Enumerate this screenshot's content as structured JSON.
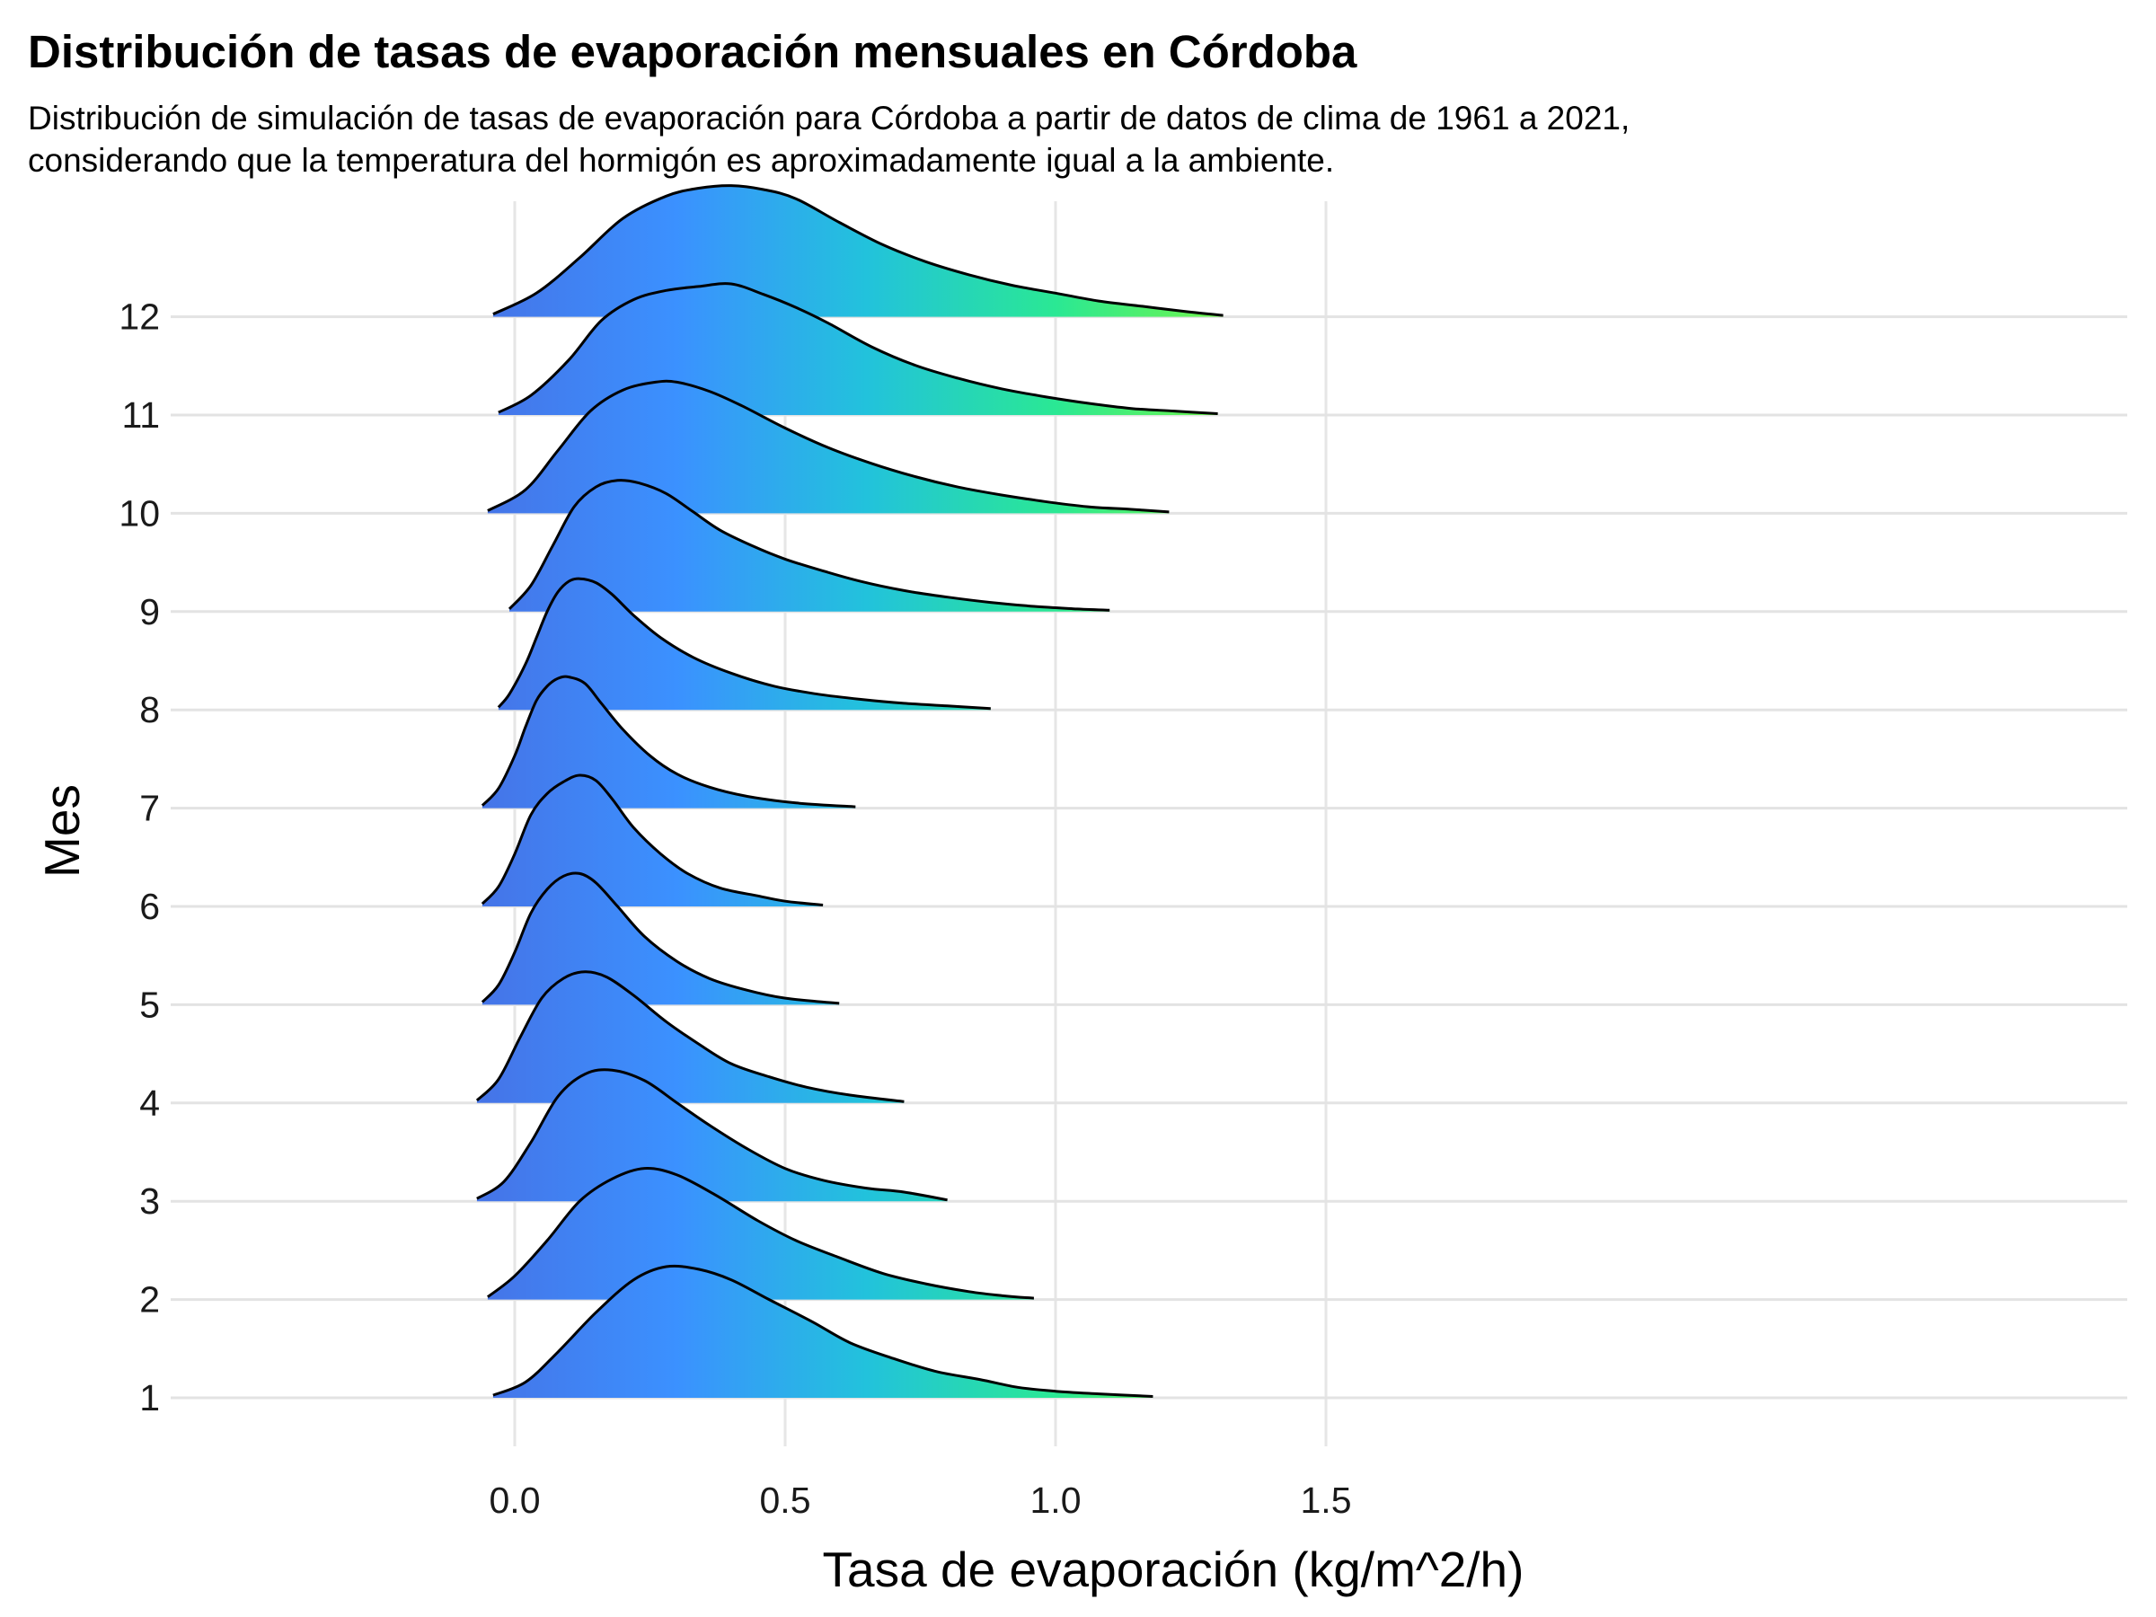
{
  "chart_data": {
    "type": "ridgeline",
    "title": "Distribución de tasas de evaporación mensuales en Córdoba",
    "subtitle": "Distribución de simulación de tasas de evaporación para Córdoba a partir de datos de clima de 1961 a 2021, considerando que la temperatura del hormigón es aproximadamente igual a la ambiente.",
    "xlabel": "Tasa de evaporación (kg/m^2/h)",
    "ylabel": "Mes",
    "xticks": [
      "0.0",
      "0.5",
      "1.0",
      "1.5"
    ],
    "xtick_values": [
      0.0,
      0.5,
      1.0,
      1.5
    ],
    "xlim": [
      -0.63,
      2.98
    ],
    "gradient_colors": [
      "#4575e8",
      "#3b91ff",
      "#22c2dc",
      "#2ae894",
      "#79f743"
    ],
    "gradient_range": [
      -0.05,
      1.35
    ],
    "grid": true,
    "series": [
      {
        "name": "1",
        "x": [
          -0.04,
          0.02,
          0.08,
          0.15,
          0.22,
          0.28,
          0.34,
          0.4,
          0.47,
          0.55,
          0.62,
          0.7,
          0.78,
          0.86,
          0.93,
          1.0,
          1.08,
          1.18
        ],
        "density": [
          0.02,
          0.12,
          0.35,
          0.65,
          0.9,
          1.0,
          0.98,
          0.9,
          0.75,
          0.58,
          0.42,
          0.3,
          0.2,
          0.14,
          0.08,
          0.05,
          0.03,
          0.01
        ]
      },
      {
        "name": "2",
        "x": [
          -0.05,
          0.0,
          0.06,
          0.12,
          0.18,
          0.24,
          0.3,
          0.37,
          0.45,
          0.52,
          0.6,
          0.68,
          0.76,
          0.84,
          0.9,
          0.96
        ],
        "density": [
          0.02,
          0.18,
          0.45,
          0.75,
          0.92,
          1.0,
          0.95,
          0.8,
          0.6,
          0.45,
          0.32,
          0.2,
          0.12,
          0.06,
          0.03,
          0.01
        ]
      },
      {
        "name": "3",
        "x": [
          -0.07,
          -0.02,
          0.03,
          0.08,
          0.13,
          0.18,
          0.24,
          0.3,
          0.36,
          0.43,
          0.5,
          0.57,
          0.65,
          0.72,
          0.8
        ],
        "density": [
          0.02,
          0.15,
          0.45,
          0.8,
          0.97,
          1.0,
          0.92,
          0.75,
          0.58,
          0.4,
          0.25,
          0.16,
          0.1,
          0.07,
          0.01
        ]
      },
      {
        "name": "4",
        "x": [
          -0.07,
          -0.03,
          0.01,
          0.05,
          0.09,
          0.13,
          0.17,
          0.22,
          0.28,
          0.34,
          0.4,
          0.47,
          0.54,
          0.62,
          0.72
        ],
        "density": [
          0.02,
          0.18,
          0.5,
          0.8,
          0.95,
          1.0,
          0.96,
          0.82,
          0.62,
          0.45,
          0.3,
          0.2,
          0.12,
          0.06,
          0.01
        ]
      },
      {
        "name": "5",
        "x": [
          -0.06,
          -0.03,
          0.0,
          0.03,
          0.06,
          0.09,
          0.12,
          0.15,
          0.19,
          0.24,
          0.3,
          0.36,
          0.43,
          0.5,
          0.6
        ],
        "density": [
          0.02,
          0.15,
          0.4,
          0.7,
          0.88,
          0.98,
          1.0,
          0.93,
          0.75,
          0.52,
          0.33,
          0.2,
          0.11,
          0.05,
          0.01
        ]
      },
      {
        "name": "6",
        "x": [
          -0.06,
          -0.03,
          0.0,
          0.03,
          0.06,
          0.09,
          0.12,
          0.15,
          0.18,
          0.22,
          0.27,
          0.32,
          0.38,
          0.45,
          0.5,
          0.57
        ],
        "density": [
          0.02,
          0.15,
          0.4,
          0.7,
          0.86,
          0.95,
          1.0,
          0.96,
          0.82,
          0.6,
          0.4,
          0.25,
          0.14,
          0.08,
          0.04,
          0.01
        ]
      },
      {
        "name": "7",
        "x": [
          -0.06,
          -0.03,
          0.0,
          0.02,
          0.04,
          0.06,
          0.08,
          0.1,
          0.13,
          0.16,
          0.2,
          0.25,
          0.3,
          0.36,
          0.43,
          0.52,
          0.63
        ],
        "density": [
          0.02,
          0.15,
          0.4,
          0.62,
          0.82,
          0.93,
          0.99,
          1.0,
          0.95,
          0.8,
          0.6,
          0.4,
          0.26,
          0.16,
          0.09,
          0.04,
          0.01
        ]
      },
      {
        "name": "8",
        "x": [
          -0.03,
          -0.01,
          0.02,
          0.04,
          0.06,
          0.08,
          0.1,
          0.12,
          0.15,
          0.18,
          0.22,
          0.27,
          0.33,
          0.4,
          0.48,
          0.56,
          0.64,
          0.72,
          0.8,
          0.88
        ],
        "density": [
          0.02,
          0.12,
          0.35,
          0.55,
          0.75,
          0.9,
          0.98,
          1.0,
          0.97,
          0.88,
          0.72,
          0.55,
          0.4,
          0.28,
          0.18,
          0.12,
          0.08,
          0.05,
          0.03,
          0.01
        ]
      },
      {
        "name": "9",
        "x": [
          -0.01,
          0.03,
          0.07,
          0.11,
          0.15,
          0.19,
          0.23,
          0.28,
          0.33,
          0.38,
          0.44,
          0.5,
          0.57,
          0.64,
          0.72,
          0.8,
          0.88,
          0.96,
          1.04,
          1.1
        ],
        "density": [
          0.02,
          0.2,
          0.5,
          0.8,
          0.95,
          1.0,
          0.98,
          0.9,
          0.76,
          0.62,
          0.5,
          0.4,
          0.31,
          0.23,
          0.16,
          0.11,
          0.07,
          0.04,
          0.02,
          0.01
        ]
      },
      {
        "name": "10",
        "x": [
          -0.05,
          0.02,
          0.08,
          0.14,
          0.2,
          0.26,
          0.3,
          0.36,
          0.42,
          0.5,
          0.58,
          0.66,
          0.74,
          0.82,
          0.9,
          0.98,
          1.06,
          1.14,
          1.21
        ],
        "density": [
          0.02,
          0.18,
          0.48,
          0.78,
          0.94,
          1.0,
          1.0,
          0.93,
          0.82,
          0.65,
          0.5,
          0.38,
          0.28,
          0.2,
          0.14,
          0.09,
          0.05,
          0.03,
          0.01
        ]
      },
      {
        "name": "11",
        "x": [
          -0.03,
          0.03,
          0.1,
          0.16,
          0.22,
          0.28,
          0.34,
          0.4,
          0.46,
          0.52,
          0.58,
          0.66,
          0.74,
          0.82,
          0.9,
          0.98,
          1.06,
          1.14,
          1.22,
          1.3
        ],
        "density": [
          0.02,
          0.15,
          0.42,
          0.72,
          0.88,
          0.95,
          0.98,
          1.0,
          0.92,
          0.82,
          0.7,
          0.52,
          0.38,
          0.28,
          0.2,
          0.14,
          0.09,
          0.05,
          0.03,
          0.01
        ]
      },
      {
        "name": "12",
        "x": [
          -0.04,
          0.04,
          0.12,
          0.2,
          0.28,
          0.34,
          0.4,
          0.46,
          0.52,
          0.6,
          0.68,
          0.76,
          0.84,
          0.92,
          1.0,
          1.08,
          1.16,
          1.24,
          1.31
        ],
        "density": [
          0.02,
          0.18,
          0.45,
          0.75,
          0.92,
          0.98,
          1.0,
          0.97,
          0.9,
          0.72,
          0.55,
          0.42,
          0.32,
          0.24,
          0.18,
          0.12,
          0.08,
          0.04,
          0.01
        ]
      }
    ]
  }
}
